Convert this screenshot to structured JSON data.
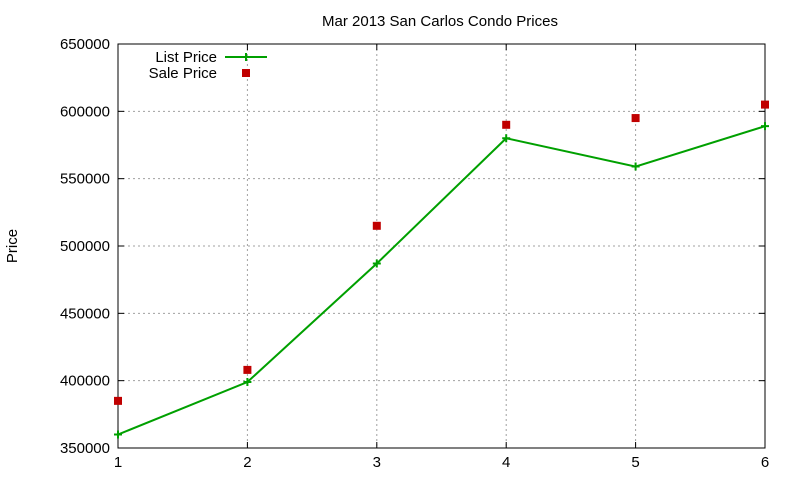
{
  "chart_data": {
    "type": "line",
    "title": "Mar 2013 San Carlos Condo Prices",
    "xlabel": "",
    "ylabel": "Price",
    "x": [
      1,
      2,
      3,
      4,
      5,
      6
    ],
    "xlim": [
      1,
      6
    ],
    "ylim": [
      350000,
      650000
    ],
    "x_ticks": [
      1,
      2,
      3,
      4,
      5,
      6
    ],
    "y_ticks": [
      350000,
      400000,
      450000,
      500000,
      550000,
      600000,
      650000
    ],
    "grid": true,
    "legend": "top-left",
    "series": [
      {
        "name": "List Price",
        "style": "line+cross",
        "color": "#00a000",
        "values": [
          360000,
          399000,
          487000,
          580000,
          559000,
          589000
        ]
      },
      {
        "name": "Sale Price",
        "style": "square",
        "color": "#c00000",
        "values": [
          385000,
          408000,
          515000,
          590000,
          595000,
          605000
        ]
      }
    ]
  }
}
